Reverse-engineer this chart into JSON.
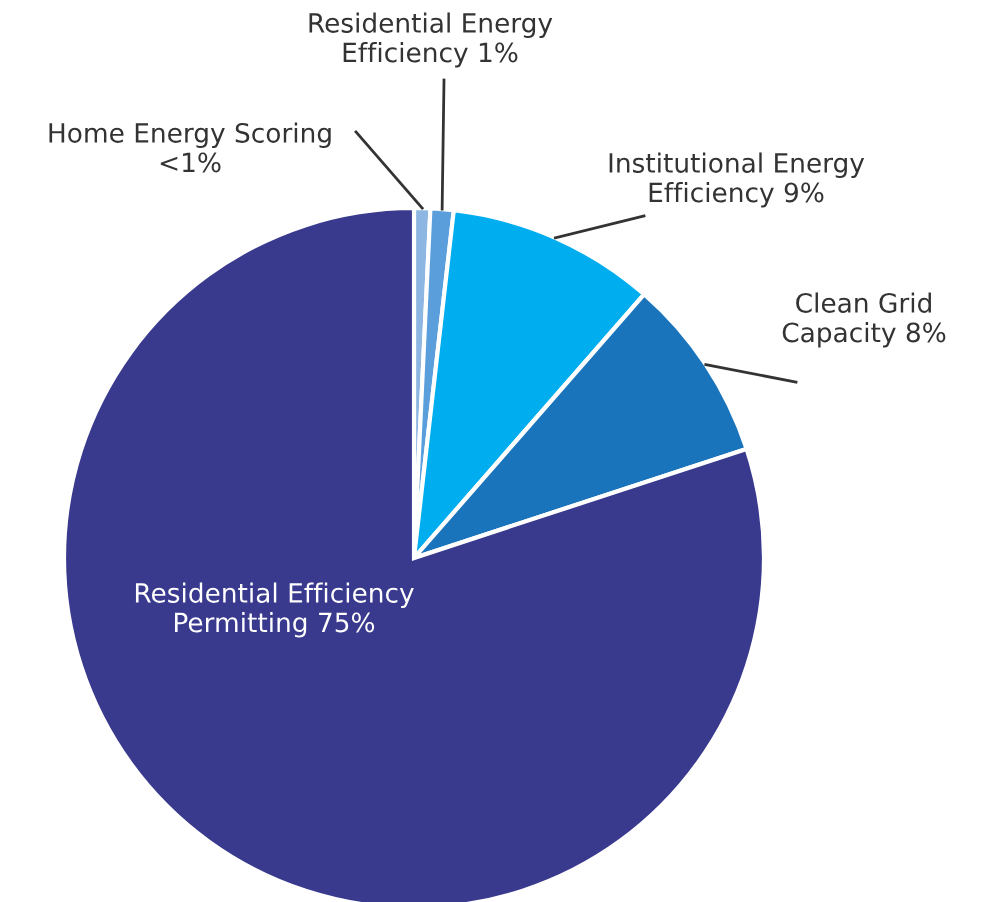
{
  "chart_data": {
    "type": "pie",
    "categories": [
      "Home Energy Scoring",
      "Residential Energy\nEfficiency",
      "Institutional Energy\nEfficiency",
      "Clean Grid\nCapacity",
      "Residential Efficiency\nPermitting"
    ],
    "values": [
      0.7,
      1,
      9,
      8,
      75
    ],
    "value_labels": [
      "<1%",
      "1%",
      "9%",
      "8%",
      "75%"
    ],
    "colors": [
      "#8db6e2",
      "#5a9fdb",
      "#00aeef",
      "#1a74bc",
      "#393a8e"
    ]
  }
}
